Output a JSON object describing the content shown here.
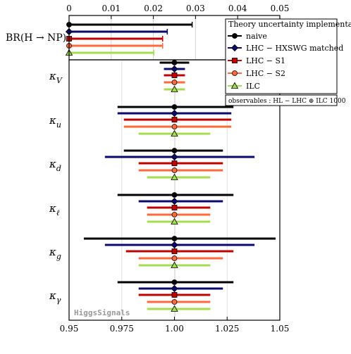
{
  "chart_data": {
    "type": "errorbar",
    "top_panel": {
      "ylabel": "BR(H → NP)",
      "xlim": [
        0,
        0.05
      ],
      "ticks": [
        "0",
        "0.01",
        "0.02",
        "0.03",
        "0.04",
        "0.05"
      ],
      "tick_values": [
        0,
        0.01,
        0.02,
        0.03,
        0.04,
        0.05
      ],
      "series_values": [
        {
          "series": "naive",
          "upper": 0.0292
        },
        {
          "series": "LHC − HXSWG matched",
          "upper": 0.0233
        },
        {
          "series": "LHC − S1",
          "upper": 0.0222
        },
        {
          "series": "LHC − S2",
          "upper": 0.0222
        },
        {
          "series": "ILC",
          "upper": 0.0201
        }
      ]
    },
    "main_panel": {
      "xlim": [
        0.95,
        1.05
      ],
      "ticks": [
        "0.95",
        "0.975",
        "1.00",
        "1.025",
        "1.05"
      ],
      "tick_values": [
        0.95,
        0.975,
        1.0,
        1.025,
        1.05
      ],
      "central_value": 1.0,
      "parameters": [
        {
          "label": "κ",
          "sub": "V",
          "intervals": [
            [
              0.993,
              1.007
            ],
            [
              0.995,
              1.005
            ],
            [
              0.995,
              1.005
            ],
            [
              0.995,
              1.005
            ],
            [
              0.995,
              1.005
            ]
          ]
        },
        {
          "label": "κ",
          "sub": "u",
          "intervals": [
            [
              0.973,
              1.028
            ],
            [
              0.973,
              1.027
            ],
            [
              0.976,
              1.027
            ],
            [
              0.976,
              1.027
            ],
            [
              0.983,
              1.017
            ]
          ]
        },
        {
          "label": "κ",
          "sub": "d",
          "intervals": [
            [
              0.976,
              1.023
            ],
            [
              0.967,
              1.038
            ],
            [
              0.983,
              1.023
            ],
            [
              0.983,
              1.023
            ],
            [
              0.987,
              1.017
            ]
          ]
        },
        {
          "label": "κ",
          "sub": "ℓ",
          "intervals": [
            [
              0.973,
              1.028
            ],
            [
              0.983,
              1.023
            ],
            [
              0.987,
              1.017
            ],
            [
              0.987,
              1.017
            ],
            [
              0.987,
              1.017
            ]
          ]
        },
        {
          "label": "κ",
          "sub": "g",
          "intervals": [
            [
              0.957,
              1.048
            ],
            [
              0.967,
              1.038
            ],
            [
              0.977,
              1.028
            ],
            [
              0.983,
              1.023
            ],
            [
              0.983,
              1.017
            ]
          ]
        },
        {
          "label": "κ",
          "sub": "γ",
          "intervals": [
            [
              0.973,
              1.028
            ],
            [
              0.983,
              1.023
            ],
            [
              0.983,
              1.017
            ],
            [
              0.987,
              1.017
            ],
            [
              0.987,
              1.017
            ]
          ]
        }
      ]
    },
    "series": [
      {
        "name": "naive",
        "color": "#000000",
        "marker": "circle"
      },
      {
        "name": "LHC − HXSWG matched",
        "color": "#0a0a6e",
        "marker": "diamond"
      },
      {
        "name": "LHC − S1",
        "color": "#c00000",
        "marker": "square"
      },
      {
        "name": "LHC − S2",
        "color": "#ff6a3d",
        "marker": "circle"
      },
      {
        "name": "ILC",
        "color": "#a6dc50",
        "marker": "triangle"
      }
    ],
    "legend": {
      "title": "Theory uncertainty implementation :",
      "placement": "top-right"
    },
    "observables_box": "observables : HL − LHC ⊕ ILC 1000",
    "watermark": "HiggsSignals",
    "grid": "vertical"
  }
}
